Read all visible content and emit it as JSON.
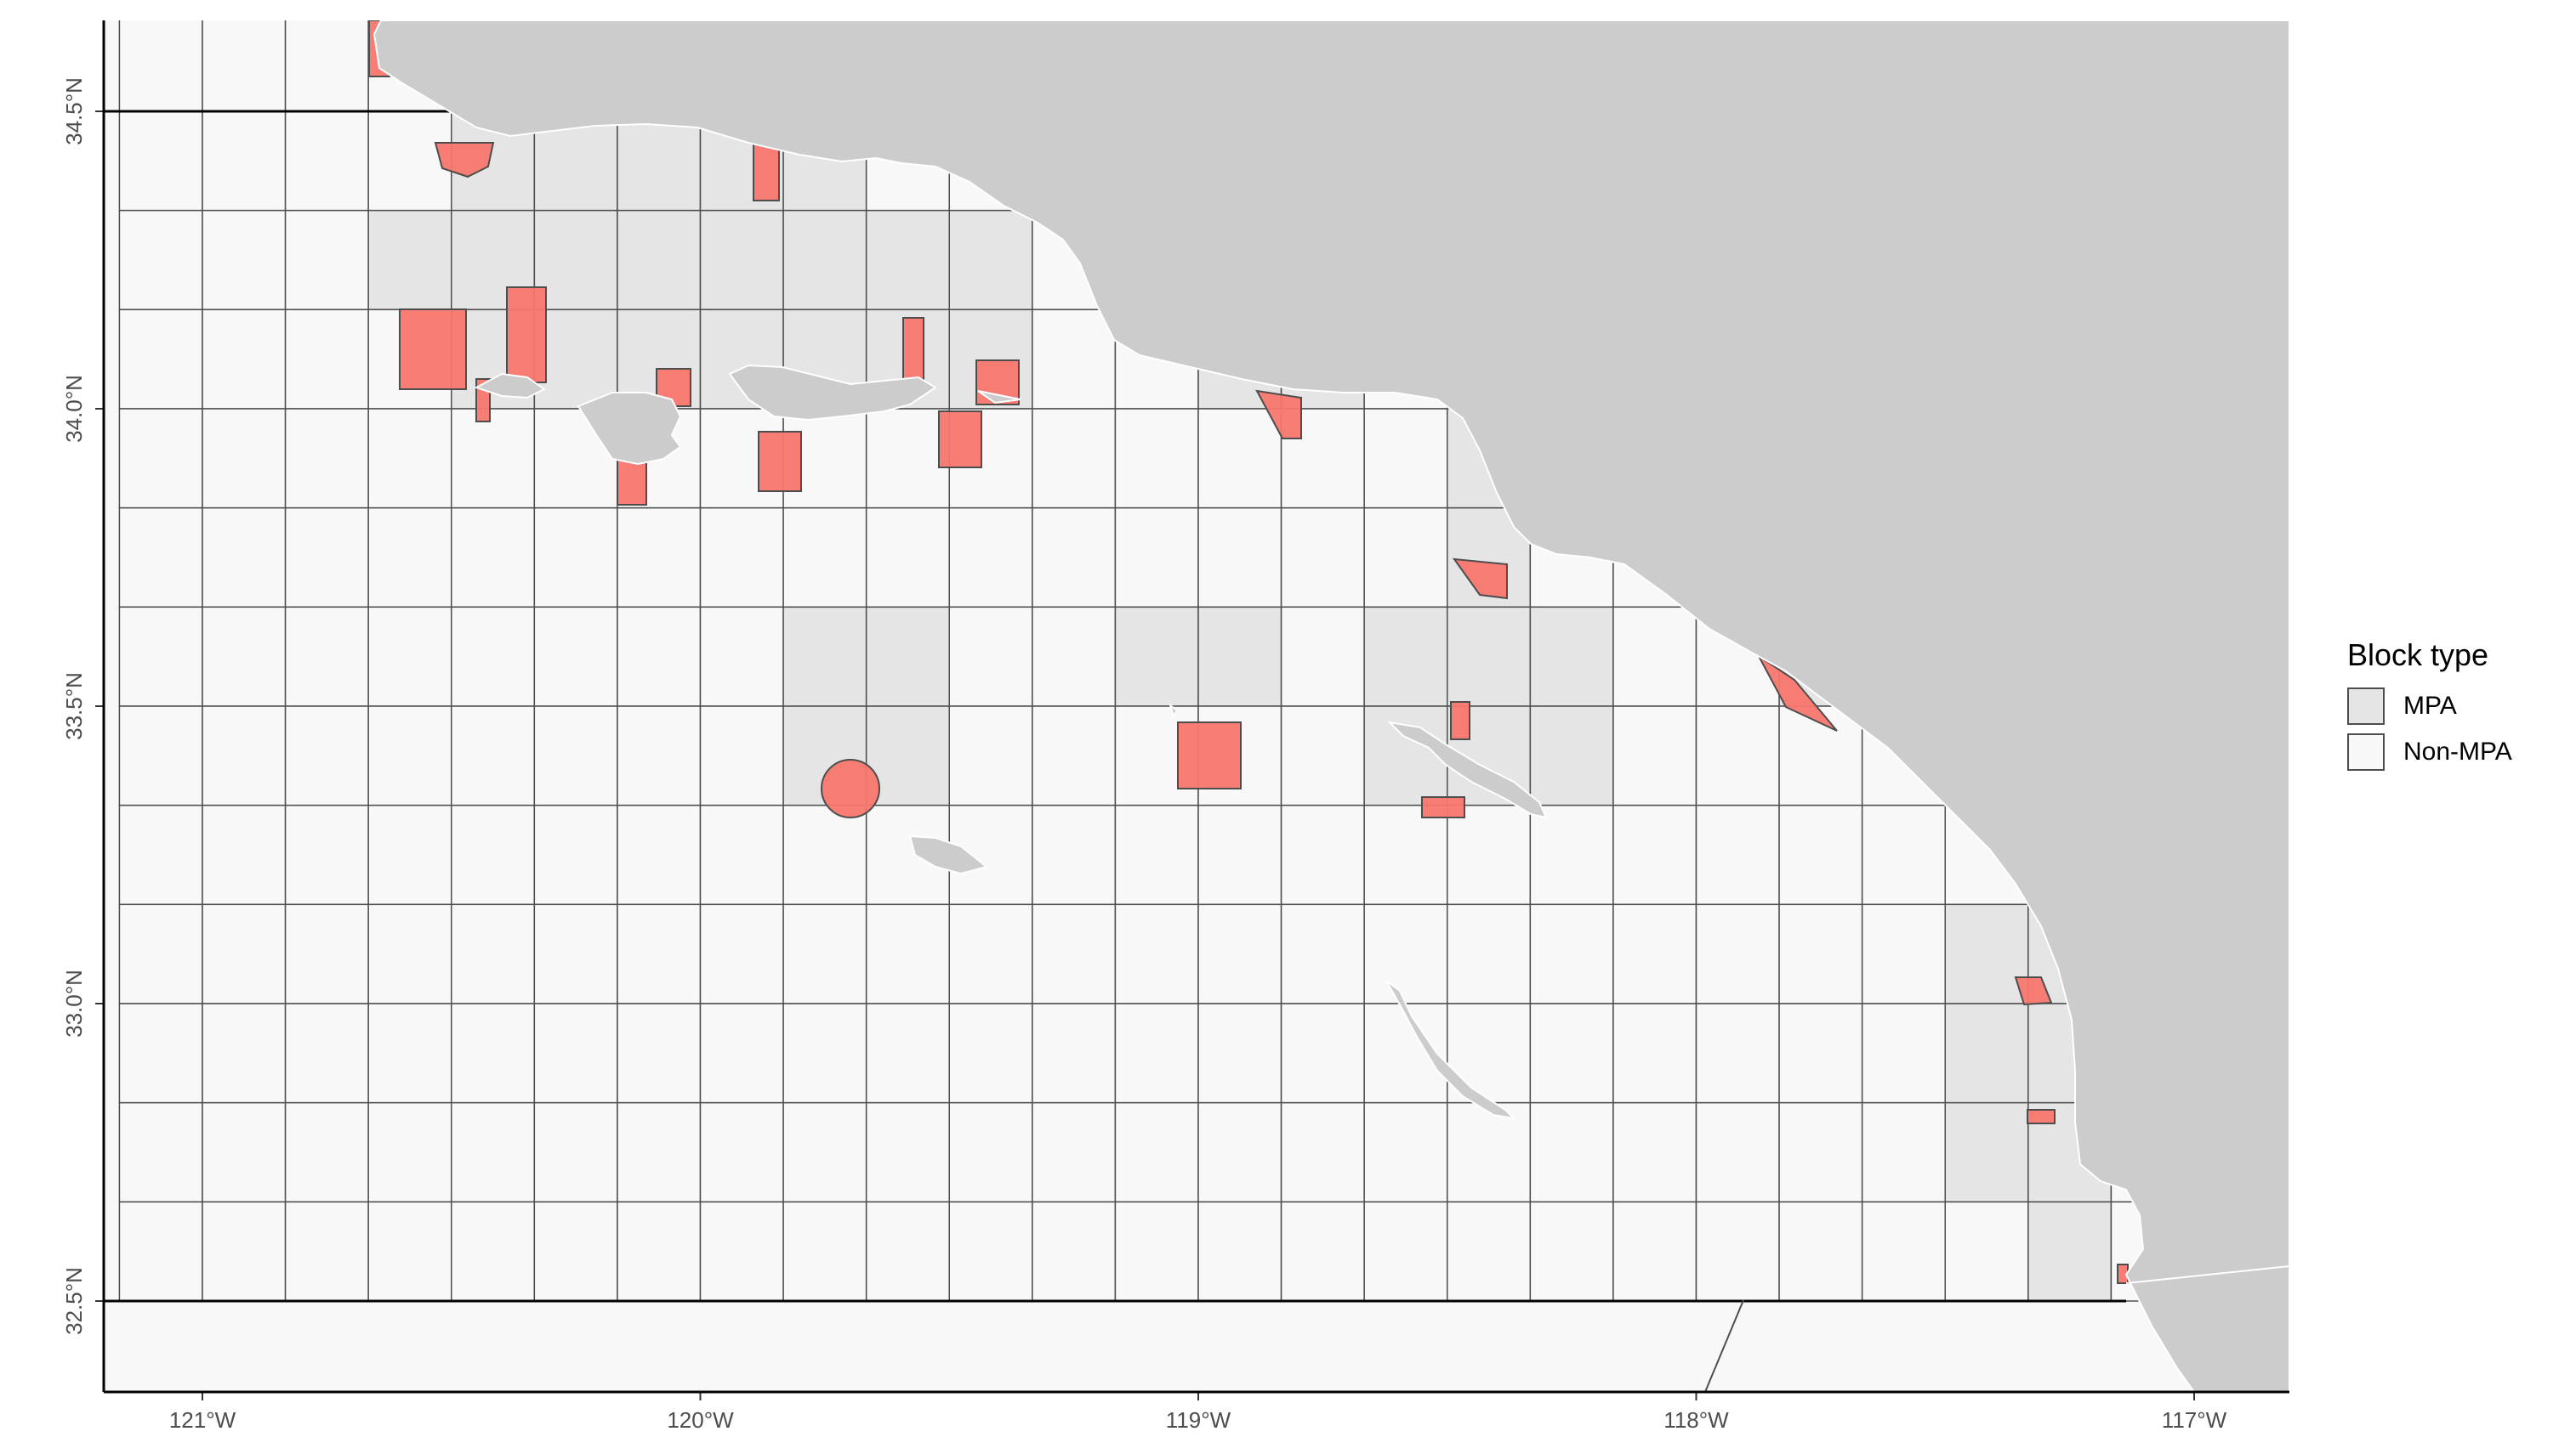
{
  "map": {
    "land_color": "#cccccc",
    "ocean_color": "#ffffff",
    "block_colors": {
      "MPA": "#e5e5e5",
      "Non-MPA": "#f8f8f8"
    },
    "mpa_color": "#f8766d",
    "extent": {
      "lon": [
        -121.2,
        -116.8
      ],
      "lat": [
        32.36,
        34.64
      ]
    },
    "x_ticks": [
      {
        "lon": -121,
        "label": "121°W"
      },
      {
        "lon": -120,
        "label": "120°W"
      },
      {
        "lon": -119,
        "label": "119°W"
      },
      {
        "lon": -118,
        "label": "118°W"
      },
      {
        "lon": -117,
        "label": "117°W"
      }
    ],
    "y_ticks": [
      {
        "lat": 34.5,
        "label": "34.5°N"
      },
      {
        "lat": 34.0,
        "label": "34.0°N"
      },
      {
        "lat": 33.5,
        "label": "33.5°N"
      },
      {
        "lat": 33.0,
        "label": "33.0°N"
      },
      {
        "lat": 32.5,
        "label": "32.5°N"
      }
    ]
  },
  "legend": {
    "title": "Block type",
    "items": [
      {
        "label": "MPA",
        "color": "#e5e5e5"
      },
      {
        "label": "Non-MPA",
        "color": "#f8f8f8"
      }
    ]
  }
}
